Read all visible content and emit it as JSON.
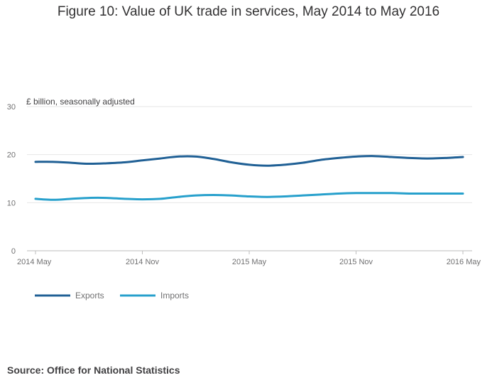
{
  "title": "Figure 10: Value of UK trade in services, May 2014 to May 2016",
  "source": "Source: Office for National Statistics",
  "chart_data": {
    "type": "line",
    "title": "Figure 10: Value of UK trade in services, May 2014 to May 2016",
    "unit_label": "£ billion, seasonally adjusted",
    "xlabel": "",
    "ylabel": "£ billion, seasonally adjusted",
    "x": [
      "2014 May",
      "2014 Jun",
      "2014 Jul",
      "2014 Aug",
      "2014 Sep",
      "2014 Oct",
      "2014 Nov",
      "2014 Dec",
      "2015 Jan",
      "2015 Feb",
      "2015 Mar",
      "2015 Apr",
      "2015 May",
      "2015 Jun",
      "2015 Jul",
      "2015 Aug",
      "2015 Sep",
      "2015 Oct",
      "2015 Nov",
      "2015 Dec",
      "2016 Jan",
      "2016 Feb",
      "2016 Mar",
      "2016 Apr",
      "2016 May"
    ],
    "x_tick_labels": [
      "2014 May",
      "2014 Nov",
      "2015 May",
      "2015 Nov",
      "2016 May"
    ],
    "ylim": [
      0,
      30
    ],
    "y_ticks": [
      0,
      10,
      20,
      30
    ],
    "grid": true,
    "legend_position": "bottom-left",
    "series": [
      {
        "name": "Exports",
        "color": "#206095",
        "values": [
          18.5,
          18.5,
          18.3,
          18.1,
          18.2,
          18.4,
          18.8,
          19.2,
          19.6,
          19.6,
          19.1,
          18.4,
          17.9,
          17.7,
          17.9,
          18.3,
          18.9,
          19.3,
          19.6,
          19.7,
          19.5,
          19.3,
          19.2,
          19.3,
          19.5
        ]
      },
      {
        "name": "Imports",
        "color": "#27a0cc",
        "values": [
          10.8,
          10.6,
          10.8,
          11.0,
          11.0,
          10.8,
          10.7,
          10.8,
          11.2,
          11.5,
          11.6,
          11.5,
          11.3,
          11.2,
          11.3,
          11.5,
          11.7,
          11.9,
          12.0,
          12.0,
          12.0,
          11.9,
          11.9,
          11.9,
          11.9
        ]
      }
    ]
  }
}
